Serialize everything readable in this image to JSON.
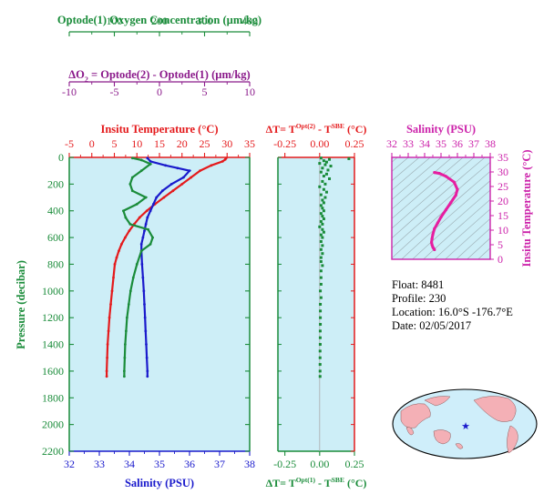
{
  "colors": {
    "oxygen": "#1a8c3a",
    "delta_o2": "#8b1a8b",
    "temperature": "#e41a1c",
    "salinity": "#1a1acc",
    "salinity_panel": "#cc22aa",
    "panel_bg": "#cdeef7",
    "black": "#000000"
  },
  "header": {
    "oxygen_axis": {
      "label": "Optode(1) Oxygen Concentration (µm/kg)",
      "ticks": [
        "0",
        "100",
        "200",
        "300",
        "400"
      ],
      "range": [
        0,
        400
      ]
    },
    "delta_o2_axis": {
      "label_delta": "ΔO",
      "label_sub": "2",
      "label_rest": " = Optode(2) - Optode(1)   (µm/kg)",
      "ticks": [
        "-10",
        "-5",
        "0",
        "5",
        "10"
      ],
      "range": [
        -10,
        10
      ]
    }
  },
  "info": {
    "float": "Float:  8481",
    "profile": "Profile:  230",
    "location": "Location:  16.0°S  -176.7°E",
    "date": "Date:  02/05/2017"
  },
  "chart_data": [
    {
      "type": "line",
      "panel": "main",
      "ylabel": "Pressure (decibar)",
      "ylim": [
        0,
        2200
      ],
      "yticks": [
        "0",
        "200",
        "400",
        "600",
        "800",
        "1000",
        "1200",
        "1400",
        "1600",
        "1800",
        "2000",
        "2200"
      ],
      "top_axis": {
        "label": "Insitu Temperature (°C)",
        "ticks": [
          "-5",
          "0",
          "5",
          "10",
          "15",
          "20",
          "25",
          "30",
          "35"
        ],
        "range": [
          -5,
          35
        ]
      },
      "bottom_axis": {
        "label": "Salinity (PSU)",
        "ticks": [
          "32",
          "33",
          "34",
          "35",
          "36",
          "37",
          "38"
        ],
        "range": [
          32,
          38
        ]
      },
      "series": [
        {
          "name": "Insitu Temperature (°C)",
          "axis": "temperature",
          "points": [
            [
              29.8,
              5
            ],
            [
              29.6,
              15
            ],
            [
              29.0,
              30
            ],
            [
              26.5,
              60
            ],
            [
              24.0,
              100
            ],
            [
              22.0,
              150
            ],
            [
              20.0,
              200
            ],
            [
              18.0,
              250
            ],
            [
              16.0,
              300
            ],
            [
              14.0,
              350
            ],
            [
              12.2,
              400
            ],
            [
              10.6,
              450
            ],
            [
              9.4,
              500
            ],
            [
              8.3,
              550
            ],
            [
              7.4,
              600
            ],
            [
              6.6,
              650
            ],
            [
              6.0,
              700
            ],
            [
              5.5,
              750
            ],
            [
              5.1,
              800
            ],
            [
              4.8,
              900
            ],
            [
              4.5,
              1000
            ],
            [
              4.2,
              1100
            ],
            [
              3.9,
              1200
            ],
            [
              3.7,
              1300
            ],
            [
              3.5,
              1400
            ],
            [
              3.4,
              1500
            ],
            [
              3.3,
              1600
            ],
            [
              3.3,
              1640
            ]
          ]
        },
        {
          "name": "Salinity (PSU)",
          "axis": "salinity",
          "points": [
            [
              34.6,
              5
            ],
            [
              34.7,
              30
            ],
            [
              35.2,
              60
            ],
            [
              35.6,
              80
            ],
            [
              36.0,
              100
            ],
            [
              35.8,
              150
            ],
            [
              35.4,
              200
            ],
            [
              35.1,
              250
            ],
            [
              34.9,
              300
            ],
            [
              34.8,
              350
            ],
            [
              34.7,
              400
            ],
            [
              34.6,
              450
            ],
            [
              34.55,
              500
            ],
            [
              34.5,
              550
            ],
            [
              34.45,
              600
            ],
            [
              34.4,
              650
            ],
            [
              34.4,
              700
            ],
            [
              34.42,
              800
            ],
            [
              34.45,
              900
            ],
            [
              34.48,
              1000
            ],
            [
              34.5,
              1100
            ],
            [
              34.52,
              1200
            ],
            [
              34.54,
              1300
            ],
            [
              34.56,
              1400
            ],
            [
              34.58,
              1500
            ],
            [
              34.6,
              1600
            ],
            [
              34.6,
              1640
            ]
          ]
        },
        {
          "name": "Optode(1) Oxygen Concentration (µm/kg)",
          "axis": "oxygen",
          "points": [
            [
              140,
              5
            ],
            [
              160,
              20
            ],
            [
              180,
              50
            ],
            [
              160,
              100
            ],
            [
              140,
              150
            ],
            [
              135,
              200
            ],
            [
              140,
              250
            ],
            [
              170,
              300
            ],
            [
              150,
              350
            ],
            [
              120,
              400
            ],
            [
              125,
              450
            ],
            [
              135,
              500
            ],
            [
              175,
              540
            ],
            [
              185,
              600
            ],
            [
              180,
              650
            ],
            [
              160,
              700
            ],
            [
              150,
              800
            ],
            [
              142,
              900
            ],
            [
              136,
              1000
            ],
            [
              132,
              1100
            ],
            [
              128,
              1200
            ],
            [
              126,
              1300
            ],
            [
              124,
              1400
            ],
            [
              123,
              1500
            ],
            [
              122,
              1600
            ],
            [
              122,
              1640
            ]
          ]
        }
      ]
    },
    {
      "type": "scatter",
      "panel": "delta_t",
      "top_axis": {
        "label_lead": "ΔT= T",
        "label_sup1": "Opt(2)",
        "label_mid": " - T",
        "label_sup2": "SBE",
        "label_tail": " (°C)",
        "ticks": [
          "-0.25",
          "0.00",
          "0.25"
        ],
        "range": [
          -0.3,
          0.25
        ]
      },
      "bottom_axis": {
        "label_lead": "ΔT= T",
        "label_sup1": "Opt(1)",
        "label_mid": " - T",
        "label_sup2": "SBE",
        "label_tail": " (°C)",
        "ticks": [
          "-0.25",
          "0.00",
          "0.25"
        ],
        "range": [
          -0.3,
          0.25
        ]
      },
      "ylim": [
        0,
        2200
      ],
      "series": [
        {
          "name": "ΔT Opt(1)",
          "points": [
            [
              0.01,
              5
            ],
            [
              0.21,
              10
            ],
            [
              0.07,
              15
            ],
            [
              0.03,
              25
            ],
            [
              0.05,
              35
            ],
            [
              0.0,
              45
            ],
            [
              0.04,
              55
            ],
            [
              0.08,
              65
            ],
            [
              0.02,
              80
            ],
            [
              0.06,
              95
            ],
            [
              0.01,
              110
            ],
            [
              0.05,
              125
            ],
            [
              0.03,
              140
            ],
            [
              0.07,
              160
            ],
            [
              0.02,
              180
            ],
            [
              0.04,
              200
            ],
            [
              0.0,
              220
            ],
            [
              0.03,
              240
            ],
            [
              0.05,
              260
            ],
            [
              0.01,
              280
            ],
            [
              0.04,
              300
            ],
            [
              0.02,
              320
            ],
            [
              0.03,
              340
            ],
            [
              0.01,
              360
            ],
            [
              0.02,
              380
            ],
            [
              0.03,
              400
            ],
            [
              0.01,
              420
            ],
            [
              0.02,
              440
            ],
            [
              0.03,
              460
            ],
            [
              0.01,
              480
            ],
            [
              0.02,
              500
            ],
            [
              0.0,
              520
            ],
            [
              0.02,
              540
            ],
            [
              0.03,
              560
            ],
            [
              0.01,
              580
            ],
            [
              0.02,
              600
            ],
            [
              0.01,
              630
            ],
            [
              0.02,
              660
            ],
            [
              0.01,
              690
            ],
            [
              0.02,
              720
            ],
            [
              0.01,
              750
            ],
            [
              0.01,
              780
            ],
            [
              0.02,
              810
            ],
            [
              0.01,
              850
            ],
            [
              0.01,
              900
            ],
            [
              0.01,
              950
            ],
            [
              0.005,
              1000
            ],
            [
              0.01,
              1050
            ],
            [
              0.005,
              1100
            ],
            [
              0.005,
              1150
            ],
            [
              0.005,
              1200
            ],
            [
              0.005,
              1250
            ],
            [
              0.004,
              1300
            ],
            [
              0.004,
              1350
            ],
            [
              0.004,
              1400
            ],
            [
              0.003,
              1450
            ],
            [
              0.003,
              1500
            ],
            [
              0.003,
              1550
            ],
            [
              0.003,
              1600
            ],
            [
              0.003,
              1640
            ]
          ]
        }
      ]
    },
    {
      "type": "line",
      "panel": "ts",
      "top_axis": {
        "label": "Salinity (PSU)",
        "ticks": [
          "32",
          "33",
          "34",
          "35",
          "36",
          "37",
          "38"
        ],
        "range": [
          32,
          38
        ]
      },
      "right_axis": {
        "label": "Insitu Temperature (°C)",
        "ticks": [
          "0",
          "5",
          "10",
          "15",
          "20",
          "25",
          "30",
          "35"
        ],
        "range": [
          0,
          35
        ]
      },
      "series": [
        {
          "name": "T-S",
          "points": [
            [
              34.6,
              29.8
            ],
            [
              34.9,
              29.5
            ],
            [
              35.3,
              28.5
            ],
            [
              35.8,
              26.5
            ],
            [
              36.0,
              24.0
            ],
            [
              35.9,
              22.0
            ],
            [
              35.6,
              19.5
            ],
            [
              35.3,
              17.0
            ],
            [
              35.0,
              14.5
            ],
            [
              34.8,
              12.5
            ],
            [
              34.6,
              10.5
            ],
            [
              34.5,
              8.5
            ],
            [
              34.45,
              7.0
            ],
            [
              34.42,
              5.8
            ],
            [
              34.45,
              5.0
            ],
            [
              34.5,
              4.2
            ],
            [
              34.55,
              3.7
            ],
            [
              34.6,
              3.3
            ]
          ]
        }
      ]
    }
  ]
}
